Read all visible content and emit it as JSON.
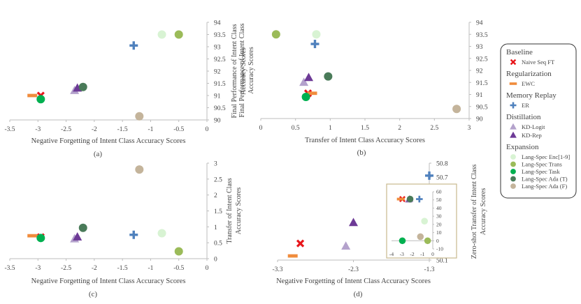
{
  "colors": {
    "naive_seq_ft": "#e8161b",
    "ewc": "#f08c3c",
    "er": "#4f81bd",
    "kd_logit": "#b4a2cc",
    "kd_rep": "#6d3a96",
    "enc": "#d8f3d3",
    "trans": "#9bbb59",
    "task": "#00b050",
    "ada_t": "#4a7b59",
    "ada_f": "#c4b49b"
  },
  "legend": {
    "groups": [
      {
        "title": "Baseline",
        "items": [
          {
            "key": "naive_seq_ft",
            "label": "Naive Seq FT",
            "marker": "x"
          }
        ]
      },
      {
        "title": "Regularization",
        "items": [
          {
            "key": "ewc",
            "label": "EWC",
            "marker": "dash"
          }
        ]
      },
      {
        "title": "Memory Replay",
        "items": [
          {
            "key": "er",
            "label": "ER",
            "marker": "plus"
          }
        ]
      },
      {
        "title": "Distillation",
        "items": [
          {
            "key": "kd_logit",
            "label": "KD-Logit",
            "marker": "tri"
          },
          {
            "key": "kd_rep",
            "label": "KD-Rep",
            "marker": "tri"
          }
        ]
      },
      {
        "title": "Expansion",
        "items": [
          {
            "key": "enc",
            "label": "Lang-Spec Enc[1-9]",
            "marker": "circle"
          },
          {
            "key": "trans",
            "label": "Lang-Spec Trans",
            "marker": "circle"
          },
          {
            "key": "task",
            "label": "Lang-Spec Task",
            "marker": "circle"
          },
          {
            "key": "ada_t",
            "label": "Lang-Spec Ada (T)",
            "marker": "circle"
          },
          {
            "key": "ada_f",
            "label": "Lang-Spec Ada (F)",
            "marker": "circle"
          }
        ]
      }
    ]
  },
  "chart_data": [
    {
      "id": "a",
      "panel_label": "(a)",
      "type": "scatter",
      "xlabel": "Negative Forgetting of Intent Class Accuracy Scores",
      "ylabel": [
        "Final Performance of  Intent Class",
        "Accuracy Scores"
      ],
      "xlim": [
        -3.5,
        0
      ],
      "ylim": [
        90,
        94
      ],
      "xticks": [
        "-3.5",
        "-3",
        "-2.5",
        "-2",
        "-1.5",
        "-1",
        "-0.5",
        "0"
      ],
      "yticks": [
        "90",
        "90.5",
        "91",
        "91.5",
        "92",
        "92.5",
        "93",
        "93.5",
        "94"
      ],
      "points": [
        {
          "series": "naive_seq_ft",
          "marker": "x",
          "x": -2.95,
          "y": 91.0
        },
        {
          "series": "ewc",
          "marker": "dash",
          "x": -3.1,
          "y": 91.0
        },
        {
          "series": "er",
          "marker": "plus",
          "x": -1.3,
          "y": 93.05
        },
        {
          "series": "kd_logit",
          "marker": "tri",
          "x": -2.35,
          "y": 91.2
        },
        {
          "series": "kd_rep",
          "marker": "tri",
          "x": -2.3,
          "y": 91.3
        },
        {
          "series": "enc",
          "marker": "circle",
          "x": -0.8,
          "y": 93.5
        },
        {
          "series": "trans",
          "marker": "circle",
          "x": -0.5,
          "y": 93.5
        },
        {
          "series": "task",
          "marker": "circle",
          "x": -2.95,
          "y": 90.85
        },
        {
          "series": "ada_t",
          "marker": "circle",
          "x": -2.2,
          "y": 91.35
        },
        {
          "series": "ada_f",
          "marker": "circle",
          "x": -1.2,
          "y": 90.15
        }
      ]
    },
    {
      "id": "b",
      "panel_label": "(b)",
      "type": "scatter",
      "xlabel": "Transfer of Intent Class Accuracy Scores",
      "ylabel": [
        "Final Performance of Intent Class",
        "Accuracy Scores"
      ],
      "xlim": [
        0,
        3
      ],
      "ylim": [
        90,
        94
      ],
      "xticks": [
        "0",
        "0.5",
        "1",
        "1.5",
        "2",
        "2.5",
        "3"
      ],
      "yticks": [
        "90",
        "90.5",
        "91",
        "91.5",
        "92",
        "92.5",
        "93",
        "93.5",
        "94"
      ],
      "points": [
        {
          "series": "naive_seq_ft",
          "marker": "x",
          "x": 0.68,
          "y": 91.05
        },
        {
          "series": "ewc",
          "marker": "dash",
          "x": 0.74,
          "y": 91.05
        },
        {
          "series": "er",
          "marker": "plus",
          "x": 0.78,
          "y": 93.1
        },
        {
          "series": "kd_logit",
          "marker": "tri",
          "x": 0.62,
          "y": 91.5
        },
        {
          "series": "kd_rep",
          "marker": "tri",
          "x": 0.69,
          "y": 91.7
        },
        {
          "series": "enc",
          "marker": "circle",
          "x": 0.8,
          "y": 93.5
        },
        {
          "series": "trans",
          "marker": "circle",
          "x": 0.22,
          "y": 93.5
        },
        {
          "series": "task",
          "marker": "circle",
          "x": 0.65,
          "y": 90.9
        },
        {
          "series": "ada_t",
          "marker": "circle",
          "x": 0.97,
          "y": 91.75
        },
        {
          "series": "ada_f",
          "marker": "circle",
          "x": 2.82,
          "y": 90.4
        }
      ]
    },
    {
      "id": "c",
      "panel_label": "(c)",
      "type": "scatter",
      "xlabel": "Negative Forgetting of Intent Class Accuracy Scores",
      "ylabel": [
        "Transfer of Intent Class",
        "Accuracy Scores"
      ],
      "xlim": [
        -3.5,
        0
      ],
      "ylim": [
        0,
        3
      ],
      "xticks": [
        "-3.5",
        "-3",
        "-2.5",
        "-2",
        "-1.5",
        "-1",
        "-0.5",
        "0"
      ],
      "yticks": [
        "0",
        "0.5",
        "1",
        "1.5",
        "2",
        "2.5",
        "3"
      ],
      "points": [
        {
          "series": "naive_seq_ft",
          "marker": "x",
          "x": -2.95,
          "y": 0.68
        },
        {
          "series": "ewc",
          "marker": "dash",
          "x": -3.1,
          "y": 0.72
        },
        {
          "series": "er",
          "marker": "plus",
          "x": -1.3,
          "y": 0.75
        },
        {
          "series": "kd_logit",
          "marker": "tri",
          "x": -2.35,
          "y": 0.62
        },
        {
          "series": "kd_rep",
          "marker": "tri",
          "x": -2.3,
          "y": 0.68
        },
        {
          "series": "enc",
          "marker": "circle",
          "x": -0.8,
          "y": 0.8
        },
        {
          "series": "trans",
          "marker": "circle",
          "x": -0.5,
          "y": 0.23
        },
        {
          "series": "task",
          "marker": "circle",
          "x": -2.95,
          "y": 0.65
        },
        {
          "series": "ada_t",
          "marker": "circle",
          "x": -2.2,
          "y": 0.97
        },
        {
          "series": "ada_f",
          "marker": "circle",
          "x": -1.2,
          "y": 2.8
        }
      ]
    },
    {
      "id": "d",
      "panel_label": "(d)",
      "type": "scatter",
      "xlabel": "Negative Forgetting of Intent Class Accuracy Scores",
      "ylabel": [
        "Zero-shot Transfer of Intent Class",
        "Accuracy Scores"
      ],
      "xlim": [
        -3.3,
        -1.3
      ],
      "ylim": [
        50.1,
        50.8
      ],
      "xticks": [
        "-3.3",
        "-2.3",
        "-1.3"
      ],
      "yticks": [
        "50.1",
        "50.2",
        "50.3",
        "50.4",
        "50.5",
        "50.6",
        "50.7",
        "50.8"
      ],
      "points": [
        {
          "series": "naive_seq_ft",
          "marker": "x",
          "x": -3.0,
          "y": 50.22
        },
        {
          "series": "ewc",
          "marker": "dash",
          "x": -3.1,
          "y": 50.13
        },
        {
          "series": "er",
          "marker": "plus",
          "x": -1.3,
          "y": 50.71
        },
        {
          "series": "kd_logit",
          "marker": "tri",
          "x": -2.4,
          "y": 50.2
        },
        {
          "series": "kd_rep",
          "marker": "tri",
          "x": -2.3,
          "y": 50.37
        }
      ],
      "inset": {
        "xlim": [
          -4,
          0
        ],
        "ylim": [
          -10,
          60
        ],
        "xticks": [
          "-4",
          "-3",
          "-2",
          "-1",
          "0"
        ],
        "yticks": [
          "-10",
          "0",
          "10",
          "20",
          "30",
          "40",
          "50",
          "60"
        ],
        "points": [
          {
            "series": "naive_seq_ft",
            "marker": "x",
            "x": -2.95,
            "y": 51
          },
          {
            "series": "ewc",
            "marker": "dash",
            "x": -3.1,
            "y": 51
          },
          {
            "series": "er",
            "marker": "plus",
            "x": -1.3,
            "y": 51
          },
          {
            "series": "kd_logit",
            "marker": "tri",
            "x": -2.35,
            "y": 50
          },
          {
            "series": "kd_rep",
            "marker": "tri",
            "x": -2.25,
            "y": 51
          },
          {
            "series": "enc",
            "marker": "circle",
            "x": -0.8,
            "y": 24
          },
          {
            "series": "trans",
            "marker": "circle",
            "x": -0.5,
            "y": 0
          },
          {
            "series": "task",
            "marker": "circle",
            "x": -2.95,
            "y": 0
          },
          {
            "series": "ada_t",
            "marker": "circle",
            "x": -2.2,
            "y": 51
          },
          {
            "series": "ada_f",
            "marker": "circle",
            "x": -1.2,
            "y": 5
          }
        ]
      }
    }
  ]
}
